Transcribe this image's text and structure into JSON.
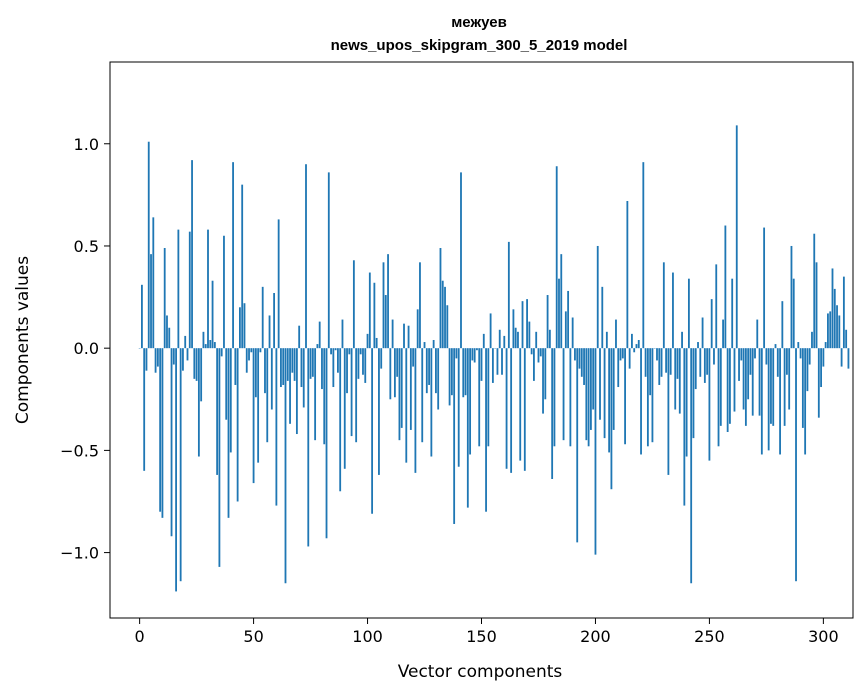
{
  "chart_data": {
    "type": "bar",
    "title": "межуев",
    "subtitle": "news_upos_skipgram_300_5_2019 model",
    "xlabel": "Vector components",
    "ylabel": "Components values",
    "xlim": [
      -13,
      313
    ],
    "ylim": [
      -1.32,
      1.4
    ],
    "xticks": [
      0,
      50,
      100,
      150,
      200,
      250,
      300
    ],
    "xtick_labels": [
      "0",
      "50",
      "100",
      "150",
      "200",
      "250",
      "300"
    ],
    "yticks": [
      -1.0,
      -0.5,
      0.0,
      0.5,
      1.0
    ],
    "ytick_labels": [
      "−1.0",
      "−0.5",
      "0.0",
      "0.5",
      "1.0"
    ],
    "bar_color": "#1f77b4",
    "grid": false,
    "legend": "none",
    "x_start": 0,
    "values": [
      0.0,
      0.31,
      -0.6,
      -0.11,
      1.01,
      0.46,
      0.64,
      -0.12,
      -0.09,
      -0.8,
      -0.83,
      0.49,
      0.16,
      0.1,
      -0.92,
      -0.08,
      -1.19,
      0.58,
      -1.14,
      -0.11,
      0.06,
      -0.06,
      0.57,
      0.92,
      -0.15,
      -0.16,
      -0.53,
      -0.26,
      0.08,
      0.02,
      0.58,
      0.04,
      0.33,
      0.03,
      -0.62,
      -1.07,
      -0.04,
      0.55,
      -0.35,
      -0.83,
      -0.51,
      0.91,
      -0.18,
      -0.75,
      0.2,
      0.8,
      0.22,
      -0.12,
      -0.06,
      -0.02,
      -0.66,
      -0.24,
      -0.56,
      -0.02,
      0.3,
      -0.22,
      -0.46,
      0.16,
      -0.3,
      0.27,
      -0.77,
      0.63,
      -0.19,
      -0.18,
      -1.15,
      -0.16,
      -0.37,
      -0.12,
      -0.16,
      -0.42,
      0.11,
      -0.19,
      -0.29,
      0.9,
      -0.97,
      -0.15,
      -0.14,
      -0.45,
      0.02,
      0.13,
      -0.2,
      -0.47,
      -0.93,
      0.86,
      -0.03,
      -0.19,
      -0.01,
      -0.12,
      -0.7,
      0.14,
      -0.59,
      -0.22,
      -0.03,
      -0.43,
      0.43,
      -0.46,
      -0.15,
      -0.03,
      -0.13,
      -0.17,
      0.07,
      0.37,
      -0.81,
      0.32,
      0.05,
      -0.62,
      -0.1,
      0.42,
      0.26,
      0.46,
      -0.25,
      0.14,
      -0.24,
      -0.14,
      -0.45,
      -0.39,
      0.12,
      -0.56,
      0.11,
      -0.4,
      -0.09,
      -0.61,
      0.19,
      0.42,
      -0.46,
      0.03,
      -0.22,
      -0.18,
      -0.53,
      0.04,
      -0.22,
      -0.3,
      0.49,
      0.33,
      0.3,
      0.21,
      -0.28,
      -0.23,
      -0.86,
      -0.05,
      -0.58,
      0.86,
      -0.24,
      -0.23,
      -0.78,
      -0.52,
      -0.06,
      -0.07,
      -0.01,
      -0.48,
      -0.16,
      0.07,
      -0.8,
      -0.48,
      0.17,
      -0.17,
      0.0,
      -0.13,
      0.09,
      -0.13,
      0.06,
      -0.59,
      0.52,
      -0.61,
      0.19,
      0.1,
      0.08,
      -0.55,
      0.23,
      -0.6,
      0.24,
      0.13,
      -0.03,
      -0.16,
      0.08,
      -0.07,
      -0.04,
      -0.32,
      -0.25,
      0.26,
      0.09,
      -0.64,
      -0.48,
      0.89,
      0.34,
      0.46,
      -0.45,
      0.18,
      0.28,
      -0.48,
      0.15,
      -0.06,
      -0.95,
      -0.1,
      -0.14,
      -0.18,
      -0.45,
      -0.48,
      -0.4,
      -0.3,
      -1.01,
      0.5,
      -0.35,
      0.3,
      -0.44,
      0.08,
      -0.51,
      -0.69,
      -0.4,
      0.14,
      -0.19,
      -0.06,
      -0.05,
      -0.47,
      0.72,
      -0.1,
      0.07,
      -0.02,
      0.02,
      0.04,
      -0.52,
      0.91,
      -0.14,
      -0.48,
      -0.23,
      -0.46,
      0.0,
      -0.06,
      -0.18,
      -0.14,
      0.42,
      -0.12,
      -0.62,
      -0.13,
      0.37,
      -0.3,
      -0.15,
      -0.32,
      0.08,
      -0.77,
      -0.53,
      0.34,
      -1.15,
      -0.44,
      -0.2,
      0.03,
      -0.14,
      0.15,
      -0.17,
      -0.13,
      -0.55,
      0.24,
      -0.08,
      0.41,
      -0.48,
      -0.38,
      0.14,
      0.6,
      -0.41,
      -0.37,
      0.34,
      -0.31,
      1.09,
      -0.16,
      -0.06,
      -0.3,
      -0.38,
      -0.25,
      -0.13,
      -0.33,
      -0.05,
      0.14,
      -0.33,
      -0.52,
      0.59,
      -0.08,
      -0.5,
      -0.37,
      -0.38,
      0.02,
      -0.14,
      -0.52,
      0.23,
      -0.38,
      -0.13,
      -0.3,
      0.5,
      0.34,
      -1.14,
      0.03,
      -0.05,
      -0.39,
      -0.52,
      -0.21,
      -0.08,
      0.08,
      0.56,
      0.42,
      -0.34,
      -0.19,
      -0.09,
      0.03,
      0.17,
      0.18,
      0.39,
      0.29,
      0.21,
      0.16,
      -0.09,
      0.35,
      0.09,
      -0.1
    ]
  }
}
